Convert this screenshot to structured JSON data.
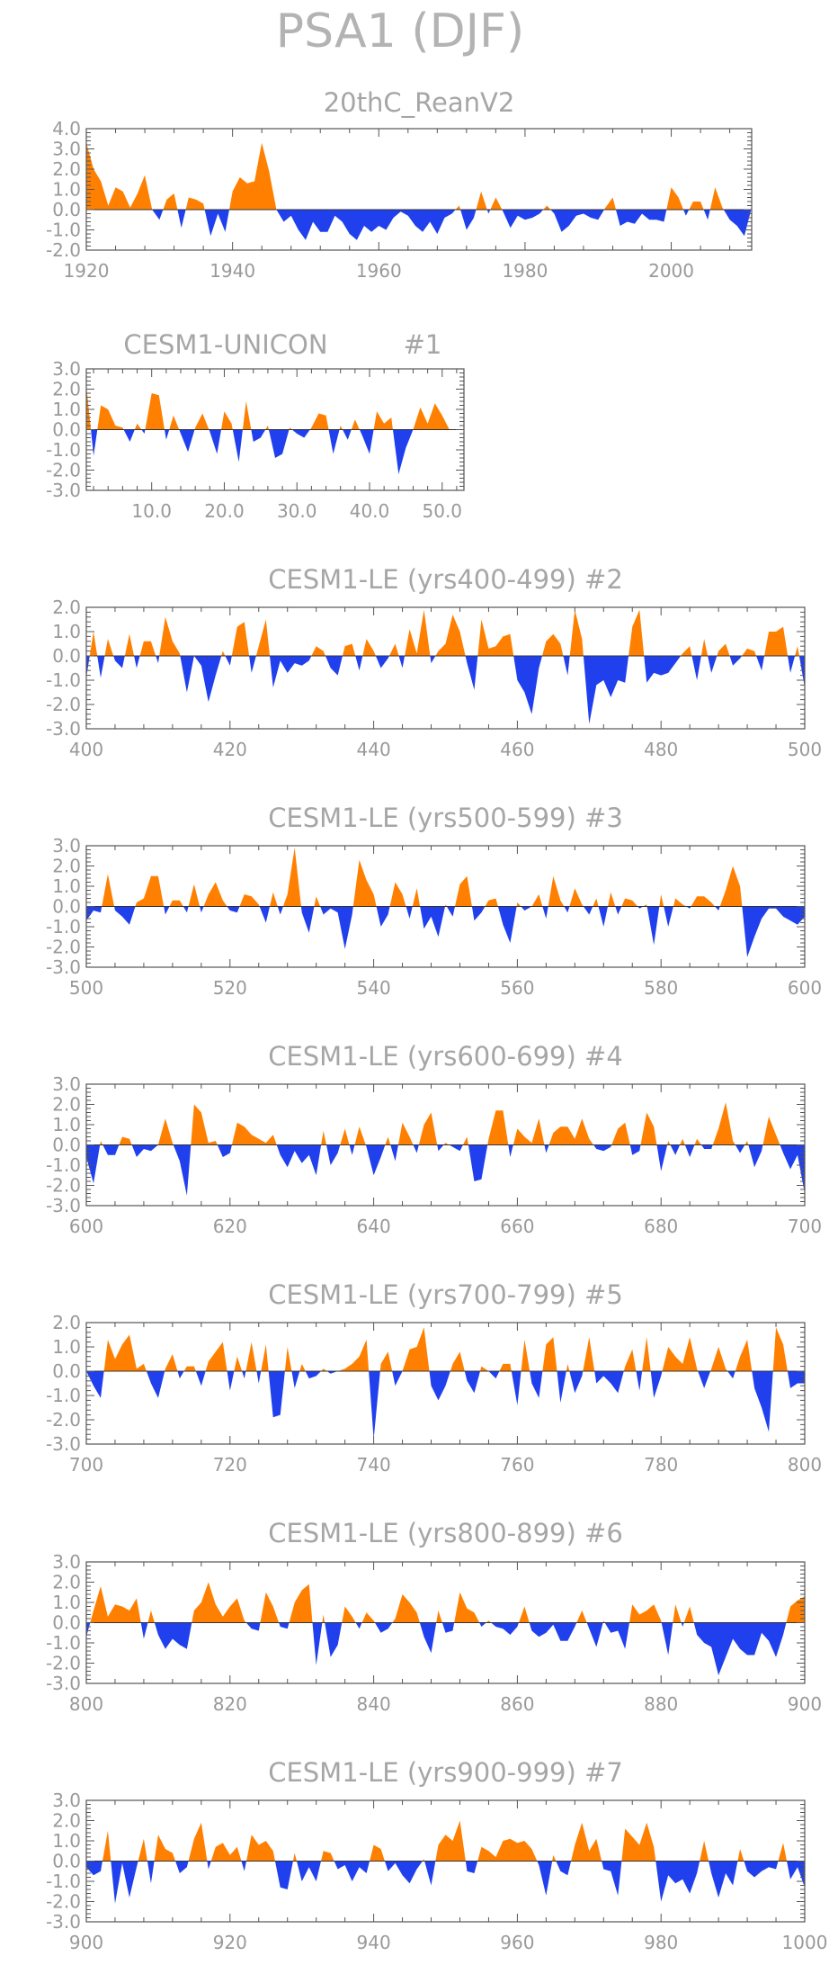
{
  "figure_title": "PSA1 (DJF)",
  "colors": {
    "positive": "#ff8000",
    "negative": "#2040ee",
    "text": "#a6a6a6",
    "frame": "#555555"
  },
  "chart_data": [
    {
      "type": "area",
      "title": "20thC_ReanV2",
      "xlim": [
        1920,
        2011
      ],
      "ylim": [
        -2.0,
        4.0
      ],
      "x_start": 1920,
      "x_step": 1,
      "xticks": [
        1920,
        1940,
        1960,
        1980,
        2000
      ],
      "yticks": [
        4.0,
        3.0,
        2.0,
        1.0,
        0.0,
        -1.0,
        -2.0
      ],
      "values": [
        3.3,
        2.0,
        1.4,
        0.2,
        1.1,
        0.9,
        0.1,
        0.8,
        1.7,
        0.0,
        -0.5,
        0.5,
        0.8,
        -0.9,
        0.6,
        0.5,
        0.3,
        -1.3,
        -0.2,
        -1.1,
        0.9,
        1.6,
        1.3,
        1.4,
        3.3,
        1.9,
        0.0,
        -0.6,
        -0.3,
        -1.0,
        -1.5,
        -0.6,
        -1.1,
        -1.1,
        -0.3,
        -0.6,
        -1.2,
        -1.5,
        -0.8,
        -1.1,
        -0.8,
        -1.0,
        -0.4,
        -0.1,
        -0.3,
        -0.8,
        -1.1,
        -0.6,
        -1.2,
        -0.4,
        -0.2,
        0.2,
        -1.0,
        -0.4,
        0.9,
        -0.2,
        0.6,
        -0.1,
        -0.9,
        -0.3,
        -0.5,
        -0.4,
        -0.2,
        0.2,
        -0.2,
        -1.1,
        -0.8,
        -0.3,
        -0.2,
        -0.4,
        -0.5,
        0.1,
        0.6,
        -0.8,
        -0.6,
        -0.7,
        -0.2,
        -0.5,
        -0.5,
        -0.6,
        1.1,
        0.6,
        -0.3,
        0.4,
        0.4,
        -0.5,
        1.1,
        0.1,
        -0.5,
        -0.8,
        -1.3,
        0.1
      ]
    },
    {
      "type": "area",
      "title": "CESM1-UNICON",
      "member": "#1",
      "xlim": [
        1,
        53
      ],
      "ylim": [
        -3.0,
        3.0
      ],
      "x_start": 1,
      "x_step": 1,
      "xticks": [
        10.0,
        20.0,
        30.0,
        40.0,
        50.0
      ],
      "xtick_labels": [
        "10.0",
        "20.0",
        "30.0",
        "40.0",
        "50.0"
      ],
      "yticks": [
        3.0,
        2.0,
        1.0,
        0.0,
        -1.0,
        -2.0,
        -3.0
      ],
      "values": [
        2.2,
        -1.3,
        1.2,
        1.0,
        0.2,
        0.1,
        -0.6,
        0.3,
        -0.2,
        1.8,
        1.7,
        -0.5,
        0.7,
        -0.2,
        -1.1,
        0.1,
        0.8,
        -0.1,
        -1.2,
        0.9,
        0.3,
        -1.6,
        1.4,
        -0.6,
        -0.4,
        0.2,
        -1.4,
        -1.2,
        0.1,
        -0.2,
        -0.4,
        0.1,
        0.8,
        0.7,
        -1.2,
        0.2,
        -0.5,
        0.5,
        -0.3,
        -1.2,
        0.9,
        0.3,
        0.6,
        -2.2,
        -0.9,
        0.0,
        1.1,
        0.3,
        1.3,
        0.7,
        0.0,
        0.0
      ]
    },
    {
      "type": "area",
      "title": "CESM1-LE (yrs400-499) #2",
      "xlim": [
        400,
        500
      ],
      "ylim": [
        -3.0,
        2.0
      ],
      "x_start": 400,
      "x_step": 1,
      "xticks": [
        400,
        420,
        440,
        460,
        480,
        500
      ],
      "yticks": [
        2.0,
        1.0,
        0.0,
        -1.0,
        -2.0,
        -3.0
      ],
      "values": [
        -0.9,
        1.0,
        -0.9,
        0.7,
        -0.2,
        -0.5,
        0.9,
        -0.5,
        0.6,
        0.6,
        -0.3,
        1.6,
        0.6,
        0.1,
        -1.5,
        0.0,
        -0.4,
        -1.9,
        -0.8,
        0.2,
        -0.4,
        1.2,
        1.4,
        -0.7,
        0.4,
        1.5,
        -1.3,
        -0.2,
        -0.7,
        -0.3,
        -0.4,
        -0.2,
        0.4,
        0.2,
        -0.5,
        -0.8,
        0.4,
        0.5,
        -0.6,
        0.7,
        0.2,
        -0.5,
        -0.1,
        0.5,
        -0.5,
        1.1,
        0.1,
        1.9,
        -0.3,
        0.2,
        0.5,
        1.7,
        1.0,
        -0.3,
        -1.4,
        1.5,
        0.3,
        0.4,
        0.8,
        0.9,
        -1.0,
        -1.5,
        -2.4,
        -0.5,
        0.6,
        0.9,
        0.5,
        -0.8,
        1.9,
        0.7,
        -2.8,
        -1.2,
        -1.0,
        -1.7,
        -1.0,
        -1.1,
        1.2,
        1.9,
        -1.1,
        -0.7,
        -0.8,
        -0.7,
        -0.3,
        0.1,
        0.4,
        -1.0,
        0.7,
        -0.7,
        0.2,
        0.5,
        -0.4,
        -0.1,
        0.3,
        0.2,
        -0.6,
        1.0,
        1.0,
        1.2,
        -0.7,
        0.4,
        -1.3
      ]
    },
    {
      "type": "area",
      "title": "CESM1-LE (yrs500-599) #3",
      "xlim": [
        500,
        600
      ],
      "ylim": [
        -3.0,
        3.0
      ],
      "x_start": 500,
      "x_step": 1,
      "xticks": [
        500,
        520,
        540,
        560,
        580,
        600
      ],
      "yticks": [
        3.0,
        2.0,
        1.0,
        0.0,
        -1.0,
        -2.0,
        -3.0
      ],
      "values": [
        -0.7,
        -0.2,
        -0.3,
        1.6,
        -0.2,
        -0.5,
        -0.9,
        0.2,
        0.4,
        1.5,
        1.5,
        -0.4,
        0.3,
        0.3,
        -0.3,
        1.1,
        -0.3,
        0.6,
        1.2,
        0.3,
        -0.2,
        -0.3,
        0.6,
        0.5,
        0.1,
        -0.8,
        0.7,
        -0.4,
        0.6,
        2.9,
        -0.3,
        -1.3,
        0.5,
        -0.4,
        -0.1,
        -0.3,
        -2.1,
        -0.4,
        2.3,
        1.3,
        0.6,
        -1.0,
        -0.4,
        1.2,
        0.6,
        -0.6,
        0.9,
        -1.1,
        -0.5,
        -1.5,
        0.1,
        -0.5,
        1.1,
        1.5,
        -0.7,
        -0.3,
        0.3,
        0.4,
        -0.9,
        -1.8,
        0.2,
        -0.2,
        0.0,
        0.6,
        -0.6,
        1.5,
        0.3,
        -0.3,
        0.9,
        0.1,
        -0.4,
        0.4,
        -1.0,
        0.7,
        -0.4,
        0.4,
        0.3,
        -0.1,
        0.1,
        -1.9,
        0.6,
        -1.0,
        0.4,
        0.1,
        -0.1,
        0.5,
        0.5,
        0.2,
        -0.2,
        0.8,
        2.0,
        1.0,
        -2.5,
        -1.5,
        -0.6,
        -0.1,
        -0.1,
        -0.5,
        -0.7,
        -0.9,
        -0.5
      ]
    },
    {
      "type": "area",
      "title": "CESM1-LE (yrs600-699) #4",
      "xlim": [
        600,
        700
      ],
      "ylim": [
        -3.0,
        3.0
      ],
      "x_start": 600,
      "x_step": 1,
      "xticks": [
        600,
        620,
        640,
        660,
        680,
        700
      ],
      "yticks": [
        3.0,
        2.0,
        1.0,
        0.0,
        -1.0,
        -2.0,
        -3.0
      ],
      "values": [
        -0.6,
        -1.9,
        0.2,
        -0.5,
        -0.5,
        0.4,
        0.3,
        -0.6,
        -0.2,
        -0.3,
        0.0,
        1.3,
        0.1,
        -0.8,
        -2.5,
        2.0,
        1.6,
        0.1,
        0.2,
        -0.6,
        -0.4,
        1.1,
        0.9,
        0.5,
        0.3,
        0.1,
        0.5,
        -0.5,
        -1.1,
        -0.3,
        -0.9,
        -0.5,
        -1.5,
        0.7,
        -1.0,
        -0.4,
        0.8,
        -0.5,
        0.9,
        -0.1,
        -1.5,
        -0.6,
        0.4,
        -0.8,
        1.1,
        0.4,
        -0.4,
        1.0,
        1.6,
        -0.3,
        0.1,
        -0.1,
        -0.3,
        0.4,
        -1.8,
        -1.7,
        0.3,
        1.7,
        1.7,
        -0.6,
        0.8,
        0.4,
        0.1,
        1.3,
        -0.4,
        0.6,
        0.9,
        0.9,
        0.3,
        1.3,
        0.3,
        -0.2,
        -0.3,
        -0.1,
        0.8,
        1.1,
        -0.5,
        -0.3,
        1.6,
        0.9,
        -1.3,
        0.2,
        -0.5,
        0.3,
        -0.6,
        0.3,
        -0.2,
        -0.2,
        0.8,
        2.1,
        0.2,
        -0.4,
        0.2,
        -1.1,
        -0.3,
        1.4,
        0.5,
        -0.4,
        -1.2,
        -0.5,
        -2.4,
        -1.5
      ]
    },
    {
      "type": "area",
      "title": "CESM1-LE (yrs700-799) #5",
      "xlim": [
        700,
        800
      ],
      "ylim": [
        -3.0,
        2.0
      ],
      "x_start": 700,
      "x_step": 1,
      "xticks": [
        700,
        720,
        740,
        760,
        780,
        800
      ],
      "yticks": [
        2.0,
        1.0,
        0.0,
        -1.0,
        -2.0,
        -3.0
      ],
      "values": [
        0.0,
        -0.6,
        -1.1,
        1.3,
        0.5,
        1.1,
        1.5,
        0.1,
        0.3,
        -0.5,
        -1.1,
        0.1,
        0.7,
        -0.3,
        0.2,
        0.2,
        -0.6,
        0.4,
        0.8,
        1.2,
        -0.8,
        0.6,
        -0.3,
        1.2,
        -0.5,
        1.1,
        -1.9,
        -1.8,
        1.0,
        -0.7,
        0.3,
        -0.3,
        -0.2,
        0.1,
        -0.1,
        0.0,
        0.1,
        0.3,
        0.6,
        1.3,
        -2.8,
        0.3,
        0.8,
        -0.6,
        0.0,
        0.9,
        1.0,
        1.8,
        -0.6,
        -1.2,
        -0.6,
        0.3,
        0.8,
        -0.4,
        -0.9,
        0.2,
        0.0,
        -0.3,
        0.3,
        0.3,
        -1.4,
        1.3,
        -0.5,
        -1.1,
        1.1,
        1.4,
        -1.3,
        0.3,
        -0.9,
        -0.2,
        1.4,
        -0.5,
        -0.2,
        -0.5,
        -0.9,
        0.2,
        0.9,
        -0.8,
        1.4,
        -1.1,
        -0.2,
        1.0,
        0.6,
        0.3,
        1.4,
        0.1,
        -0.7,
        0.1,
        1.0,
        0.1,
        -0.3,
        0.6,
        1.3,
        -0.7,
        -1.5,
        -2.5,
        1.8,
        1.1,
        -0.7,
        -0.5,
        -0.5
      ]
    },
    {
      "type": "area",
      "title": "CESM1-LE (yrs800-899) #6",
      "xlim": [
        800,
        900
      ],
      "ylim": [
        -3.0,
        3.0
      ],
      "x_start": 800,
      "x_step": 1,
      "xticks": [
        800,
        820,
        840,
        860,
        880,
        900
      ],
      "yticks": [
        3.0,
        2.0,
        1.0,
        0.0,
        -1.0,
        -2.0,
        -3.0
      ],
      "values": [
        -0.7,
        0.6,
        1.8,
        0.3,
        0.9,
        0.8,
        0.6,
        1.2,
        -0.8,
        0.6,
        -0.6,
        -1.3,
        -0.8,
        -1.1,
        -1.3,
        0.6,
        1.0,
        2.0,
        0.9,
        0.3,
        0.8,
        1.2,
        0.1,
        -0.3,
        -0.4,
        1.5,
        0.8,
        -0.2,
        -0.3,
        1.0,
        1.6,
        1.9,
        -2.1,
        0.4,
        -1.7,
        -1.1,
        0.8,
        0.3,
        -0.3,
        0.5,
        0.1,
        -0.5,
        -0.3,
        0.2,
        1.4,
        1.0,
        0.5,
        -0.7,
        -1.5,
        0.6,
        -0.5,
        -0.4,
        1.5,
        0.7,
        0.5,
        -0.2,
        0.1,
        -0.2,
        -0.3,
        -0.6,
        -0.2,
        0.8,
        -0.4,
        -0.7,
        -0.5,
        -0.1,
        -0.9,
        -0.9,
        -0.2,
        0.6,
        -0.3,
        -1.2,
        0.1,
        -0.5,
        -0.4,
        -1.3,
        0.9,
        0.4,
        0.6,
        0.9,
        0.1,
        -1.6,
        0.9,
        -0.2,
        0.8,
        -0.6,
        -1.0,
        -1.2,
        -2.6,
        -1.7,
        -0.8,
        -1.3,
        -1.6,
        -1.6,
        -0.5,
        -0.9,
        -1.7,
        -0.6,
        0.8,
        1.1,
        1.3
      ]
    },
    {
      "type": "area",
      "title": "CESM1-LE (yrs900-999) #7",
      "xlim": [
        900,
        1000
      ],
      "ylim": [
        -3.0,
        3.0
      ],
      "x_start": 900,
      "x_step": 1,
      "xticks": [
        900,
        920,
        940,
        960,
        980,
        1000
      ],
      "yticks": [
        3.0,
        2.0,
        1.0,
        0.0,
        -1.0,
        -2.0,
        -3.0
      ],
      "values": [
        -0.3,
        -0.7,
        -0.5,
        1.5,
        -2.1,
        -0.1,
        -1.8,
        -0.3,
        1.1,
        -1.1,
        1.3,
        0.6,
        0.4,
        -0.6,
        -0.3,
        1.1,
        1.9,
        -0.4,
        0.7,
        0.9,
        0.3,
        0.7,
        -0.5,
        1.3,
        0.8,
        1.0,
        0.5,
        -1.3,
        -1.4,
        0.4,
        -1.0,
        -0.3,
        -1.0,
        0.5,
        0.4,
        -0.4,
        -0.2,
        -1.0,
        -0.3,
        -0.6,
        0.8,
        0.6,
        -0.5,
        -0.1,
        -0.7,
        -1.1,
        -0.4,
        0.1,
        -1.2,
        0.8,
        1.3,
        1.0,
        2.0,
        -0.5,
        -0.6,
        0.7,
        0.5,
        0.2,
        1.0,
        1.1,
        0.9,
        1.0,
        0.6,
        -0.2,
        -1.7,
        0.3,
        -0.5,
        -0.7,
        0.8,
        1.9,
        0.5,
        1.1,
        -0.4,
        -0.5,
        -1.7,
        1.6,
        1.2,
        0.8,
        1.9,
        0.7,
        -2.0,
        -0.7,
        -1.1,
        -0.9,
        -1.6,
        -0.6,
        1.0,
        -0.6,
        -1.8,
        -0.6,
        -1.2,
        0.6,
        -0.5,
        -0.8,
        -0.5,
        -0.3,
        -0.4,
        0.9,
        -0.9,
        -0.3,
        -1.3
      ]
    }
  ]
}
